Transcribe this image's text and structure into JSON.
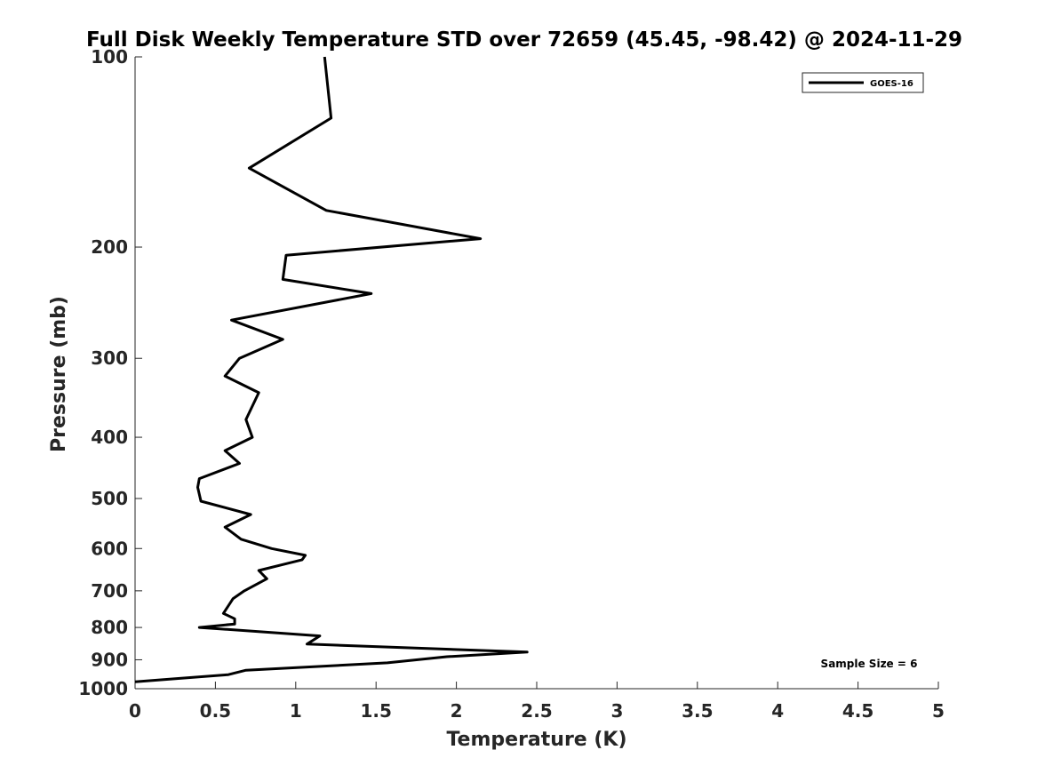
{
  "chart_data": {
    "type": "line",
    "title": "Full Disk Weekly Temperature STD over 72659 (45.45, -98.42) @ 2024-11-29",
    "xlabel": "Temperature (K)",
    "ylabel": "Pressure (mb)",
    "xlim": [
      0,
      5
    ],
    "ylim": [
      100,
      1000
    ],
    "y_scale": "log",
    "y_reversed": true,
    "grid": false,
    "legend_position": "top-right",
    "x_ticks": [
      "0",
      "0.5",
      "1",
      "1.5",
      "2",
      "2.5",
      "3",
      "3.5",
      "4",
      "4.5",
      "5"
    ],
    "y_ticks": [
      "100",
      "200",
      "300",
      "400",
      "500",
      "600",
      "700",
      "800",
      "900",
      "1000"
    ],
    "annotation": "Sample Size = 6",
    "series": [
      {
        "name": "GOES-16",
        "color": "#000000",
        "points": [
          [
            1.18,
            100
          ],
          [
            1.22,
            125
          ],
          [
            0.71,
            150
          ],
          [
            1.19,
            175
          ],
          [
            2.15,
            194
          ],
          [
            0.94,
            206
          ],
          [
            0.92,
            225
          ],
          [
            1.47,
            237
          ],
          [
            0.6,
            261
          ],
          [
            0.92,
            280
          ],
          [
            0.65,
            300
          ],
          [
            0.56,
            320
          ],
          [
            0.77,
            340
          ],
          [
            0.69,
            375
          ],
          [
            0.73,
            400
          ],
          [
            0.56,
            420
          ],
          [
            0.65,
            440
          ],
          [
            0.4,
            465
          ],
          [
            0.39,
            480
          ],
          [
            0.41,
            505
          ],
          [
            0.72,
            530
          ],
          [
            0.56,
            555
          ],
          [
            0.66,
            580
          ],
          [
            0.85,
            600
          ],
          [
            1.06,
            615
          ],
          [
            1.04,
            625
          ],
          [
            0.77,
            650
          ],
          [
            0.82,
            670
          ],
          [
            0.68,
            700
          ],
          [
            0.61,
            720
          ],
          [
            0.55,
            760
          ],
          [
            0.62,
            775
          ],
          [
            0.62,
            790
          ],
          [
            0.4,
            800
          ],
          [
            1.15,
            825
          ],
          [
            1.07,
            850
          ],
          [
            2.44,
            875
          ],
          [
            1.94,
            890
          ],
          [
            1.57,
            910
          ],
          [
            0.69,
            935
          ],
          [
            0.58,
            950
          ],
          [
            0.0,
            975
          ]
        ]
      }
    ]
  }
}
